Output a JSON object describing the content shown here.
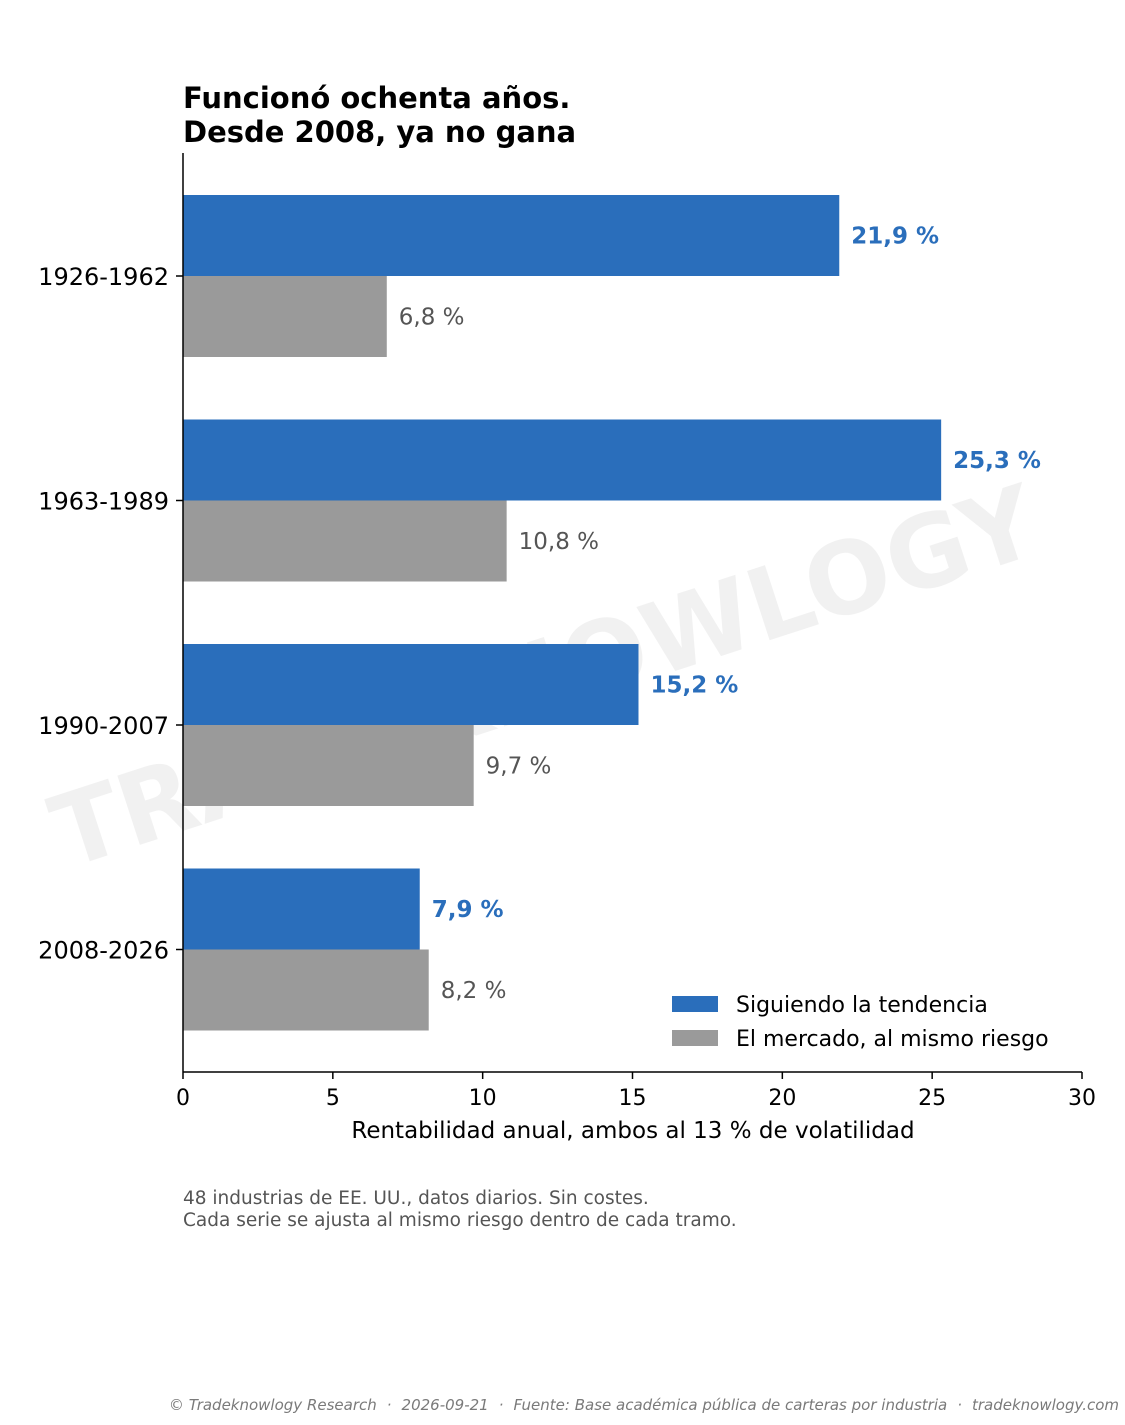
{
  "title_lines": [
    "Funcionó ochenta años.",
    "Desde 2008, ya no gana"
  ],
  "watermark": "TRADEKNOWLOGY",
  "notes": [
    "48 industrias de EE. UU., datos diarios. Sin costes.",
    "Cada serie se ajusta al mismo riesgo dentro de cada tramo."
  ],
  "footer": {
    "copyright": "© Tradeknowlogy Research",
    "date": "2026-09-21",
    "source": "Fuente: Base académica pública de carteras por industria",
    "site": "tradeknowlogy.com",
    "separator": "·"
  },
  "colors": {
    "trend": "#2a6ebb",
    "market": "#9a9a9a",
    "market_label": "#555555"
  },
  "chart_data": {
    "type": "bar",
    "orientation": "horizontal",
    "categories": [
      "1926-1962",
      "1963-1989",
      "1990-2007",
      "2008-2026"
    ],
    "series": [
      {
        "name": "Siguiendo la tendencia",
        "values": [
          21.9,
          25.3,
          15.2,
          7.9
        ],
        "labels": [
          "21,9 %",
          "25,3 %",
          "15,2 %",
          "7,9 %"
        ]
      },
      {
        "name": "El mercado, al mismo riesgo",
        "values": [
          6.8,
          10.8,
          9.7,
          8.2
        ],
        "labels": [
          "6,8 %",
          "10,8 %",
          "9,7 %",
          "8,2 %"
        ]
      }
    ],
    "xlabel": "Rentabilidad anual, ambos al 13 % de volatilidad",
    "xlim": [
      0,
      30
    ],
    "xticks": [
      0,
      5,
      10,
      15,
      20,
      25,
      30
    ],
    "grid": false,
    "legend_position": "bottom-right"
  }
}
